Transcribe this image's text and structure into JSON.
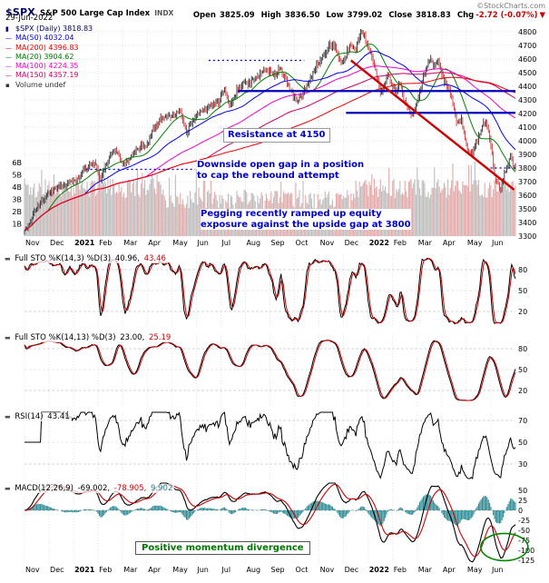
{
  "header": {
    "symbol": "$SPX",
    "name": "S&P 500 Large Cap Index",
    "exchange": "INDX",
    "source": "©StockCharts.com",
    "date": "29-Jun-2022",
    "ohlc": {
      "open_label": "Open",
      "open": "3825.09",
      "high_label": "High",
      "high": "3836.50",
      "low_label": "Low",
      "low": "3799.02",
      "close_label": "Close",
      "close": "3818.83",
      "chg_label": "Chg",
      "chg": "-2.72 (-0.07%)",
      "down_icon": "▼"
    }
  },
  "legend": {
    "items": [
      {
        "label": "$SPX (Daily) 3818.83",
        "color": "#000066",
        "marker": "▮"
      },
      {
        "label": "MA(50) 4032.04",
        "color": "#0000ee",
        "marker": "—"
      },
      {
        "label": "MA(200) 4396.83",
        "color": "#ee0000",
        "marker": "—"
      },
      {
        "label": "MA(20) 3904.62",
        "color": "#008000",
        "marker": "—"
      },
      {
        "label": "MA(100) 4224.35",
        "color": "#ee00cc",
        "marker": "—"
      },
      {
        "label": "MA(150) 4357.19",
        "color": "#cc0066",
        "marker": "—"
      },
      {
        "label": "Volume undef",
        "color": "#333333",
        "marker": "▪"
      }
    ]
  },
  "panels": {
    "sto1": {
      "label": "Full STO %K(14,3) %D(3)",
      "v1": "40.96,",
      "v2": "43.46"
    },
    "sto2": {
      "label": "Full STO %K(14,13) %D(3)",
      "v1": "23.00,",
      "v2": "25.19"
    },
    "rsi": {
      "label": "RSI(14)",
      "v1": "43.41"
    },
    "macd": {
      "label": "MACD(12,26,9)",
      "v1": "-69.002,",
      "v2": "-78.905,",
      "v3": "9.902"
    }
  },
  "annotations": {
    "resistance": {
      "text": "Resistance at 4150"
    },
    "gap": {
      "line1": "Downside open gap in a position",
      "line2": "to cap the rebound attempt"
    },
    "pegging": {
      "line1": "Pegging recently ramped up equity",
      "line2": "exposure against the upside gap at 3800"
    },
    "divergence": {
      "text": "Positive momentum divergence"
    }
  },
  "colors": {
    "annotation_blue": "#0000cc",
    "trendline_red": "#cc0000",
    "divergence_green": "#007700",
    "macd_hist": "#2e8b94"
  },
  "chart_data": [
    {
      "type": "candlestick",
      "symbol": "$SPX",
      "timeframe": "Daily",
      "ohlc_today": {
        "open": 3825.09,
        "high": 3836.5,
        "low": 3799.02,
        "close": 3818.83,
        "chg": -2.72,
        "chg_pct": -0.07
      },
      "ylim": [
        3280,
        4830
      ],
      "y_ticks": [
        3300,
        3400,
        3500,
        3600,
        3700,
        3800,
        3900,
        4000,
        4100,
        4200,
        4300,
        4400,
        4500,
        4600,
        4700,
        4800
      ],
      "x_labels": [
        "Nov",
        "Dec",
        "2021",
        "Feb",
        "Mar",
        "Apr",
        "May",
        "Jun",
        "Jul",
        "Aug",
        "Sep",
        "Oct",
        "Nov",
        "Dec",
        "2022",
        "Feb",
        "Mar",
        "Apr",
        "May",
        "Jun"
      ],
      "month_starts": [
        0,
        20,
        40,
        60,
        80,
        100,
        120,
        140,
        160,
        180,
        200,
        220,
        240,
        260,
        280,
        300,
        320,
        340,
        360,
        380
      ],
      "close_anchors": [
        [
          0,
          3330
        ],
        [
          8,
          3470
        ],
        [
          14,
          3560
        ],
        [
          21,
          3625
        ],
        [
          30,
          3670
        ],
        [
          42,
          3720
        ],
        [
          50,
          3800
        ],
        [
          57,
          3840
        ],
        [
          62,
          3715
        ],
        [
          70,
          3900
        ],
        [
          76,
          3930
        ],
        [
          80,
          3820
        ],
        [
          88,
          3900
        ],
        [
          95,
          3960
        ],
        [
          100,
          3972
        ],
        [
          105,
          4080
        ],
        [
          112,
          4170
        ],
        [
          120,
          4180
        ],
        [
          127,
          4230
        ],
        [
          132,
          4060
        ],
        [
          138,
          4170
        ],
        [
          145,
          4220
        ],
        [
          152,
          4250
        ],
        [
          158,
          4290
        ],
        [
          163,
          4360
        ],
        [
          167,
          4260
        ],
        [
          175,
          4400
        ],
        [
          183,
          4430
        ],
        [
          190,
          4480
        ],
        [
          196,
          4530
        ],
        [
          203,
          4470
        ],
        [
          208,
          4530
        ],
        [
          213,
          4440
        ],
        [
          218,
          4350
        ],
        [
          222,
          4300
        ],
        [
          228,
          4360
        ],
        [
          233,
          4470
        ],
        [
          238,
          4545
        ],
        [
          243,
          4630
        ],
        [
          248,
          4700
        ],
        [
          253,
          4690
        ],
        [
          257,
          4600
        ],
        [
          260,
          4580
        ],
        [
          263,
          4655
        ],
        [
          266,
          4700
        ],
        [
          270,
          4670
        ],
        [
          273,
          4770
        ],
        [
          276,
          4795
        ],
        [
          280,
          4670
        ],
        [
          284,
          4580
        ],
        [
          287,
          4480
        ],
        [
          290,
          4330
        ],
        [
          293,
          4420
        ],
        [
          296,
          4480
        ],
        [
          299,
          4400
        ],
        [
          303,
          4350
        ],
        [
          306,
          4420
        ],
        [
          309,
          4300
        ],
        [
          313,
          4220
        ],
        [
          316,
          4170
        ],
        [
          319,
          4260
        ],
        [
          323,
          4390
        ],
        [
          327,
          4520
        ],
        [
          330,
          4600
        ],
        [
          334,
          4540
        ],
        [
          337,
          4580
        ],
        [
          341,
          4460
        ],
        [
          345,
          4390
        ],
        [
          349,
          4270
        ],
        [
          352,
          4130
        ],
        [
          356,
          4150
        ],
        [
          359,
          4000
        ],
        [
          362,
          3930
        ],
        [
          365,
          3900
        ],
        [
          368,
          3980
        ],
        [
          371,
          4060
        ],
        [
          374,
          4150
        ],
        [
          377,
          4110
        ],
        [
          380,
          3960
        ],
        [
          383,
          3750
        ],
        [
          386,
          3670
        ],
        [
          388,
          3640
        ],
        [
          391,
          3760
        ],
        [
          394,
          3830
        ],
        [
          396,
          3910
        ],
        [
          398,
          3820
        ],
        [
          400,
          3819
        ]
      ],
      "moving_averages": [
        {
          "name": "MA(20)",
          "period": 20,
          "last": 3904.62,
          "color": "#008000"
        },
        {
          "name": "MA(50)",
          "period": 50,
          "last": 4032.04,
          "color": "#0000ee"
        },
        {
          "name": "MA(100)",
          "period": 100,
          "last": 4224.35,
          "color": "#ee00cc"
        },
        {
          "name": "MA(150)",
          "period": 150,
          "last": 4357.19,
          "color": "#cc0066"
        },
        {
          "name": "MA(200)",
          "period": 200,
          "last": 4396.83,
          "color": "#ee0000"
        }
      ],
      "volume_axis": [
        "1B",
        "2B",
        "3B",
        "4B",
        "5B",
        "6B"
      ],
      "overlays": {
        "resistance_lines": [
          {
            "price": 4365,
            "from": 174,
            "to": 401
          },
          {
            "price": 4205,
            "from": 262,
            "to": 401
          }
        ],
        "downtrend_line": {
          "from": [
            266,
            4590
          ],
          "to": [
            399,
            3640
          ]
        },
        "dotted_lines": [
          {
            "price": 3790,
            "from": 50,
            "to": 139
          },
          {
            "price": 4590,
            "from": 150,
            "to": 228
          },
          {
            "price": 3800,
            "from": 376,
            "to": 401
          }
        ]
      }
    },
    {
      "type": "line",
      "name": "Full STO %K(14,3) %D(3)",
      "k": 40.96,
      "d": 43.46,
      "thresholds": [
        80,
        50,
        20
      ],
      "ylim": [
        0,
        100
      ]
    },
    {
      "type": "line",
      "name": "Full STO %K(14,13) %D(3)",
      "k": 23.0,
      "d": 25.19,
      "thresholds": [
        80,
        50,
        20
      ],
      "ylim": [
        0,
        100
      ]
    },
    {
      "type": "line",
      "name": "RSI(14)",
      "value": 43.41,
      "thresholds": [
        70,
        50,
        30
      ],
      "ylim": [
        10,
        90
      ]
    },
    {
      "type": "macd",
      "name": "MACD(12,26,9)",
      "macd": -69.002,
      "signal": -78.905,
      "hist": 9.902,
      "y_ticks": [
        50,
        25,
        0,
        -25,
        -50,
        -75,
        -100,
        -125
      ],
      "ylim": [
        -140,
        60
      ]
    }
  ]
}
